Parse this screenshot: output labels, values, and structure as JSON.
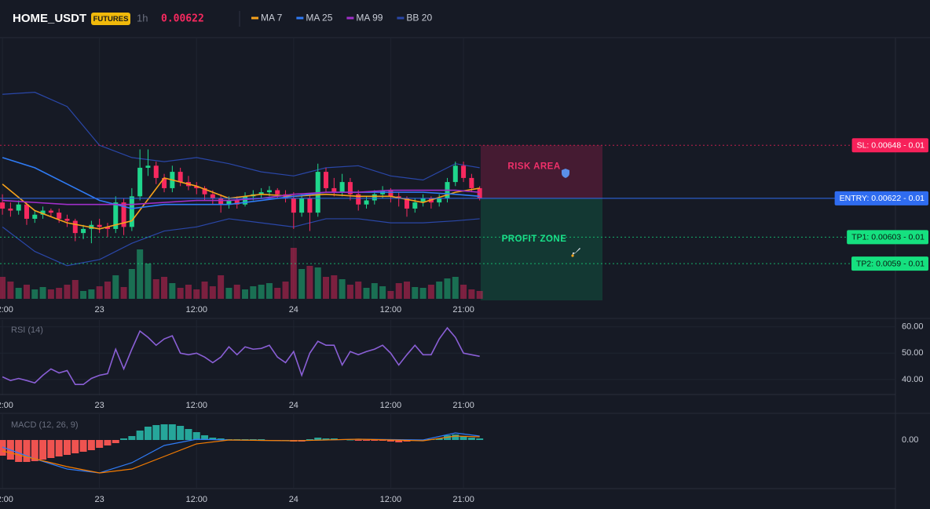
{
  "header": {
    "symbol": "HOME_USDT",
    "badge": "FUTURES",
    "interval": "1h",
    "price": "0.00622"
  },
  "chart_data": [
    {
      "type": "candlestick",
      "xlim": [
        -0.3,
        110.4
      ],
      "ylim": [
        0.00572,
        0.007
      ],
      "xticks": [
        {
          "value": 0,
          "label": "12:00"
        },
        {
          "value": 12,
          "label": "23"
        },
        {
          "value": 24,
          "label": "12:00"
        },
        {
          "value": 36,
          "label": "24"
        },
        {
          "value": 48,
          "label": "12:00"
        },
        {
          "value": 57,
          "label": "21:00"
        }
      ],
      "up_color": "#1fd68c",
      "down_color": "#f7295f",
      "candles": [
        [
          0.0062,
          0.00624,
          0.00614,
          0.00617
        ],
        [
          0.00617,
          0.0062,
          0.00613,
          0.00616
        ],
        [
          0.00616,
          0.00621,
          0.00614,
          0.00619
        ],
        [
          0.00619,
          0.0062,
          0.00609,
          0.00612
        ],
        [
          0.00612,
          0.00616,
          0.0061,
          0.00614
        ],
        [
          0.00614,
          0.00618,
          0.00612,
          0.00616
        ],
        [
          0.00616,
          0.00617,
          0.00613,
          0.00615
        ],
        [
          0.00615,
          0.00617,
          0.0061,
          0.00612
        ],
        [
          0.00612,
          0.00614,
          0.00608,
          0.00611
        ],
        [
          0.00611,
          0.00612,
          0.00601,
          0.00605
        ],
        [
          0.00605,
          0.00609,
          0.00602,
          0.00607
        ],
        [
          0.00607,
          0.00611,
          0.006,
          0.00609
        ],
        [
          0.00609,
          0.00612,
          0.00605,
          0.00608
        ],
        [
          0.00608,
          0.0061,
          0.00603,
          0.00607
        ],
        [
          0.00607,
          0.00623,
          0.00605,
          0.0062
        ],
        [
          0.0062,
          0.00622,
          0.00604,
          0.00608
        ],
        [
          0.00608,
          0.00627,
          0.00606,
          0.00623
        ],
        [
          0.00623,
          0.00646,
          0.00621,
          0.00637
        ],
        [
          0.00637,
          0.00646,
          0.00633,
          0.00638
        ],
        [
          0.00638,
          0.0064,
          0.00629,
          0.00632
        ],
        [
          0.00632,
          0.00634,
          0.00625,
          0.00627
        ],
        [
          0.00627,
          0.00638,
          0.00625,
          0.00635
        ],
        [
          0.00635,
          0.00637,
          0.00628,
          0.0063
        ],
        [
          0.0063,
          0.00633,
          0.00626,
          0.00628
        ],
        [
          0.00628,
          0.0063,
          0.00624,
          0.00627
        ],
        [
          0.00627,
          0.00628,
          0.00621,
          0.00624
        ],
        [
          0.00624,
          0.00626,
          0.00619,
          0.00622
        ],
        [
          0.00622,
          0.00624,
          0.00615,
          0.00619
        ],
        [
          0.00619,
          0.00623,
          0.00617,
          0.00621
        ],
        [
          0.00621,
          0.00623,
          0.00617,
          0.00619
        ],
        [
          0.00619,
          0.00625,
          0.00618,
          0.00623
        ],
        [
          0.00623,
          0.00626,
          0.00621,
          0.00624
        ],
        [
          0.00624,
          0.00627,
          0.00622,
          0.00625
        ],
        [
          0.00625,
          0.00628,
          0.00623,
          0.00626
        ],
        [
          0.00626,
          0.00627,
          0.00622,
          0.00624
        ],
        [
          0.00624,
          0.00626,
          0.0062,
          0.00622
        ],
        [
          0.00622,
          0.00625,
          0.00607,
          0.00615
        ],
        [
          0.00615,
          0.00624,
          0.00613,
          0.00622
        ],
        [
          0.00622,
          0.00624,
          0.00606,
          0.00615
        ],
        [
          0.00615,
          0.00639,
          0.00613,
          0.00635
        ],
        [
          0.00635,
          0.00637,
          0.00625,
          0.00627
        ],
        [
          0.00627,
          0.00632,
          0.00623,
          0.00625
        ],
        [
          0.00625,
          0.00634,
          0.00623,
          0.0063
        ],
        [
          0.0063,
          0.00632,
          0.00621,
          0.00624
        ],
        [
          0.00624,
          0.00626,
          0.00616,
          0.00619
        ],
        [
          0.00619,
          0.00623,
          0.00617,
          0.00621
        ],
        [
          0.00621,
          0.00626,
          0.00619,
          0.00624
        ],
        [
          0.00624,
          0.00628,
          0.00622,
          0.00626
        ],
        [
          0.00626,
          0.00627,
          0.0062,
          0.00623
        ],
        [
          0.00623,
          0.00625,
          0.00618,
          0.00622
        ],
        [
          0.00622,
          0.00623,
          0.00613,
          0.00617
        ],
        [
          0.00617,
          0.00622,
          0.00615,
          0.0062
        ],
        [
          0.0062,
          0.00624,
          0.00618,
          0.00622
        ],
        [
          0.00622,
          0.00623,
          0.00617,
          0.0062
        ],
        [
          0.0062,
          0.00624,
          0.00618,
          0.00622
        ],
        [
          0.00622,
          0.00632,
          0.0062,
          0.0063
        ],
        [
          0.0063,
          0.0064,
          0.00628,
          0.00638
        ],
        [
          0.00638,
          0.0064,
          0.0063,
          0.00632
        ],
        [
          0.00632,
          0.00634,
          0.00625,
          0.00627
        ],
        [
          0.00627,
          0.00628,
          0.00621,
          0.00622
        ]
      ],
      "volume": [
        28,
        22,
        14,
        18,
        12,
        15,
        12,
        14,
        18,
        24,
        10,
        12,
        16,
        22,
        30,
        15,
        38,
        63,
        45,
        25,
        28,
        20,
        14,
        18,
        12,
        22,
        16,
        30,
        14,
        18,
        12,
        16,
        18,
        20,
        14,
        22,
        65,
        38,
        42,
        40,
        28,
        30,
        25,
        18,
        22,
        14,
        20,
        16,
        10,
        20,
        22,
        15,
        14,
        18,
        22,
        26,
        28,
        18,
        12,
        10
      ],
      "volume_ylim": [
        0,
        100
      ],
      "series": [
        {
          "name": "MA 7",
          "color": "#f7a21b",
          "x": [
            0,
            4,
            8,
            12,
            16,
            20,
            24,
            28,
            32,
            36,
            40,
            44,
            48,
            52,
            56,
            59
          ],
          "values": [
            0.00629,
            0.00616,
            0.0061,
            0.00607,
            0.00611,
            0.00632,
            0.00628,
            0.00622,
            0.00624,
            0.00623,
            0.00624,
            0.00623,
            0.00623,
            0.0062,
            0.00625,
            0.00627
          ]
        },
        {
          "name": "MA 25",
          "color": "#2f7bf5",
          "x": [
            0,
            4,
            8,
            12,
            16,
            20,
            24,
            28,
            32,
            36,
            40,
            44,
            48,
            52,
            56,
            59
          ],
          "values": [
            0.00642,
            0.00637,
            0.00629,
            0.00621,
            0.00617,
            0.00619,
            0.00619,
            0.00619,
            0.00621,
            0.00623,
            0.00625,
            0.00625,
            0.00625,
            0.00625,
            0.00624,
            0.00623
          ]
        },
        {
          "name": "MA 99",
          "color": "#a12fc9",
          "x": [
            0,
            4,
            8,
            12,
            16,
            20,
            24,
            28,
            32,
            36,
            40,
            44,
            48,
            52,
            56,
            59
          ],
          "values": [
            0.00621,
            0.0062,
            0.00619,
            0.00619,
            0.00619,
            0.0062,
            0.00621,
            0.00621,
            0.00622,
            0.00624,
            0.00625,
            0.00625,
            0.00626,
            0.00626,
            0.00626,
            0.00625
          ]
        }
      ],
      "bands": {
        "name": "BB 20",
        "color": "#2a47a8",
        "x": [
          0,
          4,
          8,
          12,
          16,
          20,
          24,
          28,
          32,
          36,
          40,
          44,
          48,
          52,
          56,
          59
        ],
        "upper": [
          0.00673,
          0.00674,
          0.00667,
          0.00648,
          0.00642,
          0.0064,
          0.00642,
          0.00639,
          0.00635,
          0.00633,
          0.00637,
          0.00638,
          0.00633,
          0.00631,
          0.00639,
          0.00637
        ],
        "lower": [
          0.00608,
          0.00596,
          0.00589,
          0.00592,
          0.006,
          0.00606,
          0.00608,
          0.00612,
          0.0061,
          0.00608,
          0.00612,
          0.00612,
          0.0061,
          0.0061,
          0.00611,
          0.00612
        ]
      },
      "levels": [
        {
          "label": "SL: 0.00648 - 0.01",
          "value": 0.00648,
          "color": "#f7215a"
        },
        {
          "label": "ENTRY: 0.00622 - 0.01",
          "value": 0.00622,
          "color": "#2f6cf0"
        },
        {
          "label": "TP1: 0.00603 - 0.01",
          "value": 0.00603,
          "color": "#15e07f"
        },
        {
          "label": "TP2: 0.0059 - 0.01",
          "value": 0.0059,
          "color": "#15e07f"
        }
      ],
      "zones": [
        {
          "label": "RISK AREA",
          "from": 0.00648,
          "to": 0.00622,
          "color": "#c21f55"
        },
        {
          "label": "PROFIT ZONE",
          "from": 0.00622,
          "to": 0.00572,
          "color": "#0e8a5a"
        }
      ]
    },
    {
      "type": "line",
      "label": "RSI (14)",
      "color": "#8a5fd6",
      "ylim": [
        34,
        62
      ],
      "yticks": [
        {
          "value": 60,
          "label": "60.00"
        },
        {
          "value": 50,
          "label": "50.00"
        },
        {
          "value": 40,
          "label": "40.00"
        }
      ],
      "values": [
        41.0,
        39.6,
        40.4,
        39.6,
        38.7,
        41.6,
        44.0,
        42.5,
        43.4,
        38.1,
        38.1,
        40.4,
        41.6,
        42.2,
        51.5,
        44.0,
        51.5,
        58.4,
        56.0,
        53.0,
        55.4,
        56.6,
        50.0,
        49.4,
        50.0,
        48.5,
        46.4,
        48.5,
        52.4,
        49.4,
        52.4,
        51.5,
        51.8,
        53.0,
        48.5,
        46.4,
        50.6,
        41.6,
        50.0,
        54.5,
        53.0,
        53.0,
        45.5,
        50.6,
        49.4,
        50.6,
        51.5,
        53.0,
        50.0,
        45.5,
        49.4,
        53.0,
        49.4,
        49.4,
        55.4,
        59.6,
        56.0,
        50.0,
        49.4,
        48.8
      ]
    },
    {
      "type": "macd",
      "label": "MACD (12, 26, 9)",
      "ylim": [
        -6.1e-05,
        3.1e-05
      ],
      "yticks": [
        {
          "value": 0,
          "label": "0.00"
        }
      ],
      "up_color": "#26a69a",
      "down_color": "#ef5350",
      "histogram": [
        -2e-05,
        -2.5e-05,
        -2.8e-05,
        -2.8e-05,
        -2.7e-05,
        -2.5e-05,
        -2.3e-05,
        -2.1e-05,
        -1.9e-05,
        -1.7e-05,
        -1.5e-05,
        -1.3e-05,
        -1e-05,
        -7e-06,
        -4e-06,
        2e-06,
        5e-06,
        1.2e-05,
        1.7e-05,
        1.9e-05,
        2e-05,
        2e-05,
        1.8e-05,
        1.4e-05,
        1e-05,
        6e-06,
        3e-06,
        2e-06,
        1e-06,
        1e-06,
        1e-06,
        1e-06,
        1e-06,
        -1e-06,
        -1e-06,
        0,
        -2e-06,
        -2e-06,
        1e-06,
        3e-06,
        2e-06,
        2e-06,
        1e-06,
        0,
        -1e-06,
        -1e-06,
        -1e-06,
        -1e-06,
        -2e-06,
        -3e-06,
        -2e-06,
        -1e-06,
        0,
        1e-06,
        2e-06,
        6e-06,
        7e-06,
        5e-06,
        3e-06,
        2e-06
      ],
      "series": [
        {
          "color": "#2f7bf5",
          "x": [
            0,
            4,
            8,
            12,
            16,
            20,
            24,
            28,
            36,
            44,
            52,
            56,
            59
          ],
          "values": [
            -9e-06,
            -2.4e-05,
            -3.7e-05,
            -4.2e-05,
            -2.9e-05,
            -7e-06,
            1e-06,
            0,
            -1e-06,
            1e-06,
            0,
            9e-06,
            5e-06
          ]
        },
        {
          "color": "#f57c00",
          "x": [
            0,
            4,
            8,
            12,
            16,
            20,
            24,
            28,
            36,
            44,
            52,
            56,
            59
          ],
          "values": [
            -1.4e-05,
            -2.4e-05,
            -3.4e-05,
            -4.2e-05,
            -3.7e-05,
            -2.1e-05,
            -5e-06,
            0,
            -1e-06,
            1e-06,
            -1e-06,
            5e-06,
            4e-06
          ]
        }
      ]
    }
  ]
}
